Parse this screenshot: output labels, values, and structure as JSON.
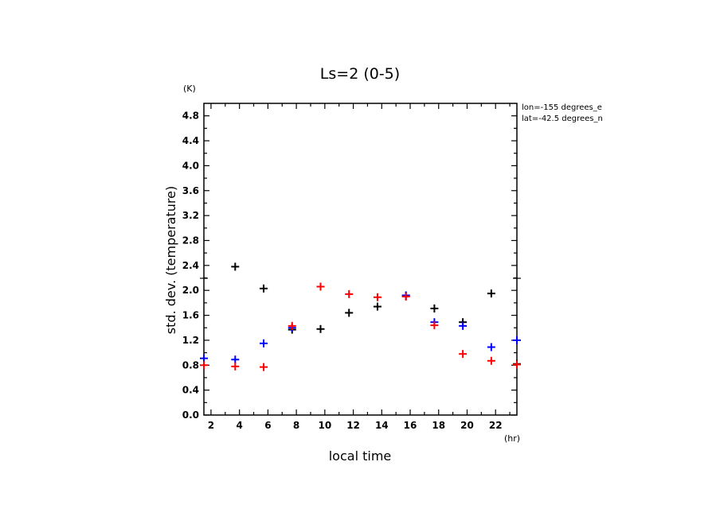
{
  "chart_data": {
    "type": "scatter",
    "title": "Ls=2 (0-5)",
    "xlabel": "local time",
    "ylabel": "std. dev. (temperature)",
    "x_unit": "(hr)",
    "y_unit": "(K)",
    "xlim": [
      1.5,
      23.5
    ],
    "ylim": [
      0.0,
      5.0
    ],
    "x_ticks": [
      2,
      4,
      6,
      8,
      10,
      12,
      14,
      16,
      18,
      20,
      22
    ],
    "y_ticks": [
      0.0,
      0.4,
      0.8,
      1.2,
      1.6,
      2.0,
      2.4,
      2.8,
      3.2,
      3.6,
      4.0,
      4.4,
      4.8
    ],
    "y_tick_labels": [
      "0.0",
      "0.4",
      "0.8",
      "1.2",
      "1.6",
      "2.0",
      "2.4",
      "2.8",
      "3.2",
      "3.6",
      "4.0",
      "4.4",
      "4.8"
    ],
    "grid": false,
    "info_lines": [
      "lon=-155 degrees_e",
      "lat=-42.5 degrees_n"
    ],
    "series": [
      {
        "color": "#000000",
        "points": [
          {
            "x": 3.7,
            "y": 2.38
          },
          {
            "x": 5.7,
            "y": 2.03
          },
          {
            "x": 7.7,
            "y": 1.37
          },
          {
            "x": 9.7,
            "y": 1.38
          },
          {
            "x": 11.7,
            "y": 1.64
          },
          {
            "x": 13.7,
            "y": 1.74
          },
          {
            "x": 15.7,
            "y": 1.91
          },
          {
            "x": 17.7,
            "y": 1.71
          },
          {
            "x": 19.7,
            "y": 1.49
          },
          {
            "x": 21.7,
            "y": 1.95
          },
          {
            "x": 23.5,
            "y": 0.82
          }
        ]
      },
      {
        "color": "#0000ff",
        "points": [
          {
            "x": 1.5,
            "y": 0.91
          },
          {
            "x": 3.7,
            "y": 0.89
          },
          {
            "x": 5.7,
            "y": 1.15
          },
          {
            "x": 7.7,
            "y": 1.4
          },
          {
            "x": 15.7,
            "y": 1.92
          },
          {
            "x": 17.7,
            "y": 1.49
          },
          {
            "x": 19.7,
            "y": 1.43
          },
          {
            "x": 21.7,
            "y": 1.09
          },
          {
            "x": 23.5,
            "y": 1.2
          }
        ]
      },
      {
        "color": "#ff0000",
        "points": [
          {
            "x": 1.5,
            "y": 0.8
          },
          {
            "x": 3.7,
            "y": 0.78
          },
          {
            "x": 5.7,
            "y": 0.77
          },
          {
            "x": 7.7,
            "y": 1.43
          },
          {
            "x": 9.7,
            "y": 2.06
          },
          {
            "x": 11.7,
            "y": 1.94
          },
          {
            "x": 13.7,
            "y": 1.89
          },
          {
            "x": 15.7,
            "y": 1.9
          },
          {
            "x": 17.7,
            "y": 1.44
          },
          {
            "x": 19.7,
            "y": 0.98
          },
          {
            "x": 21.7,
            "y": 0.87
          },
          {
            "x": 23.5,
            "y": 0.81
          }
        ]
      }
    ]
  }
}
